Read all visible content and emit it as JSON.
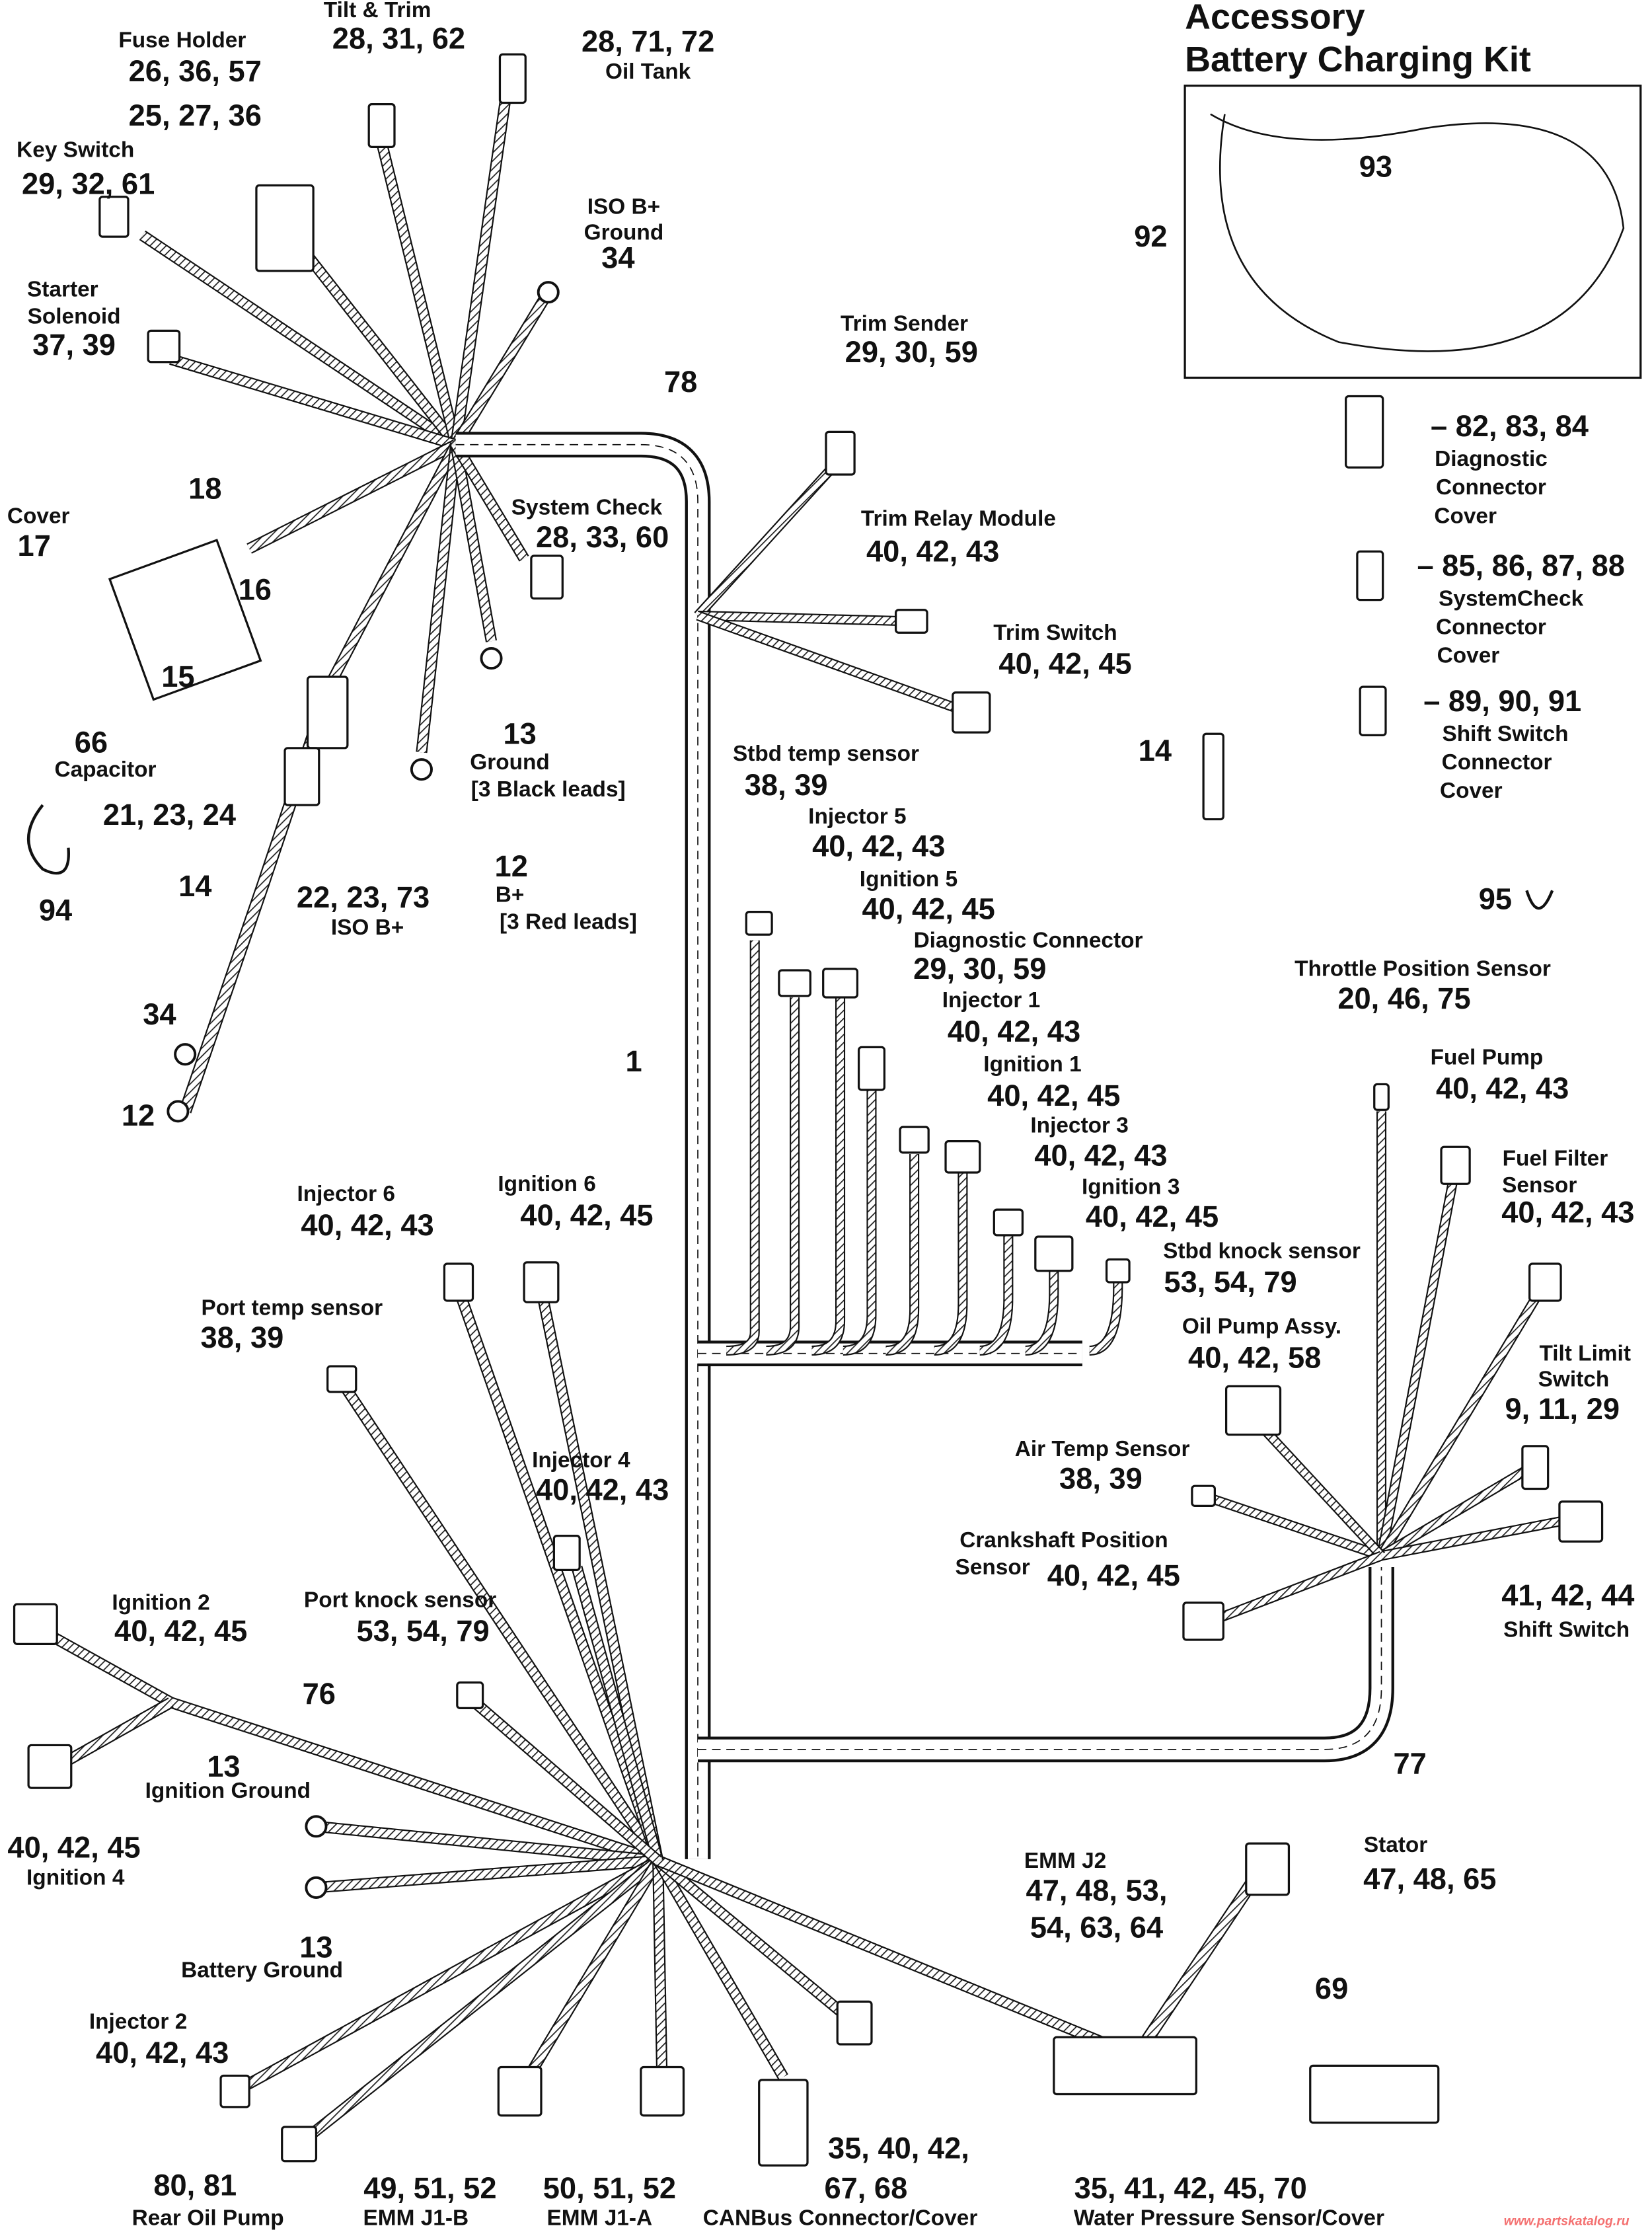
{
  "diagram": {
    "watermark": "www.partskatalog.ru",
    "line_color": "#111111",
    "watermark_color": "#f47070",
    "callouts": [
      {
        "lines": [
          {
            "t": "Tilt & Trim",
            "k": "lbl"
          },
          {
            "t": "28, 31, 62",
            "k": "num"
          }
        ]
      },
      {
        "lines": [
          {
            "t": "28, 71, 72",
            "k": "num"
          },
          {
            "t": "Oil Tank",
            "k": "lbl"
          }
        ]
      },
      {
        "lines": [
          {
            "t": "Fuse Holder",
            "k": "lbl"
          },
          {
            "t": "26, 36, 57",
            "k": "num"
          }
        ]
      },
      {
        "lines": [
          {
            "t": "25, 27, 36",
            "k": "num"
          }
        ]
      },
      {
        "lines": [
          {
            "t": "Key Switch",
            "k": "lbl"
          },
          {
            "t": "29, 32, 61",
            "k": "num"
          }
        ]
      },
      {
        "lines": [
          {
            "t": "ISO B+",
            "k": "lbl"
          },
          {
            "t": "Ground",
            "k": "lbl"
          },
          {
            "t": "34",
            "k": "num"
          }
        ]
      },
      {
        "lines": [
          {
            "t": "Starter",
            "k": "lbl"
          },
          {
            "t": "Solenoid",
            "k": "lbl"
          },
          {
            "t": "37, 39",
            "k": "num"
          }
        ]
      },
      {
        "lines": [
          {
            "t": "78",
            "k": "num"
          }
        ]
      },
      {
        "lines": [
          {
            "t": "Trim Sender",
            "k": "lbl"
          },
          {
            "t": "29, 30, 59",
            "k": "num"
          }
        ]
      },
      {
        "lines": [
          {
            "t": "Cover",
            "k": "lbl"
          },
          {
            "t": "17",
            "k": "num"
          }
        ]
      },
      {
        "lines": [
          {
            "t": "18",
            "k": "num"
          }
        ]
      },
      {
        "lines": [
          {
            "t": "16",
            "k": "num"
          }
        ]
      },
      {
        "lines": [
          {
            "t": "15",
            "k": "num"
          }
        ]
      },
      {
        "lines": [
          {
            "t": "66",
            "k": "num"
          },
          {
            "t": "Capacitor",
            "k": "lbl"
          }
        ]
      },
      {
        "lines": [
          {
            "t": "System Check",
            "k": "lbl"
          },
          {
            "t": "28, 33, 60",
            "k": "num"
          }
        ]
      },
      {
        "lines": [
          {
            "t": "Trim Relay Module",
            "k": "lbl"
          },
          {
            "t": "40, 42, 43",
            "k": "num"
          }
        ]
      },
      {
        "lines": [
          {
            "t": "Trim Switch",
            "k": "lbl"
          },
          {
            "t": "40, 42, 45",
            "k": "num"
          }
        ]
      },
      {
        "lines": [
          {
            "t": "13",
            "k": "num"
          },
          {
            "t": "Ground",
            "k": "lbl"
          },
          {
            "t": "[3 Black leads]",
            "k": "lbl"
          }
        ]
      },
      {
        "lines": [
          {
            "t": "21, 23, 24",
            "k": "num"
          }
        ]
      },
      {
        "lines": [
          {
            "t": "14",
            "k": "num"
          }
        ]
      },
      {
        "lines": [
          {
            "t": "22, 23, 73",
            "k": "num"
          },
          {
            "t": "ISO B+",
            "k": "lbl"
          }
        ]
      },
      {
        "lines": [
          {
            "t": "12",
            "k": "num"
          },
          {
            "t": "B+",
            "k": "lbl"
          },
          {
            "t": "[3 Red leads]",
            "k": "lbl"
          }
        ]
      },
      {
        "lines": [
          {
            "t": "94",
            "k": "num"
          }
        ]
      },
      {
        "lines": [
          {
            "t": "14",
            "k": "num"
          }
        ]
      },
      {
        "lines": [
          {
            "t": "Stbd temp sensor",
            "k": "lbl"
          },
          {
            "t": "38, 39",
            "k": "num"
          }
        ]
      },
      {
        "lines": [
          {
            "t": "Injector 5",
            "k": "lbl"
          },
          {
            "t": "40, 42, 43",
            "k": "num"
          }
        ]
      },
      {
        "lines": [
          {
            "t": "Ignition 5",
            "k": "lbl"
          },
          {
            "t": "40, 42, 45",
            "k": "num"
          }
        ]
      },
      {
        "lines": [
          {
            "t": "Diagnostic Connector",
            "k": "lbl"
          },
          {
            "t": "29, 30, 59",
            "k": "num"
          }
        ]
      },
      {
        "lines": [
          {
            "t": "Injector 1",
            "k": "lbl"
          },
          {
            "t": "40, 42, 43",
            "k": "num"
          }
        ]
      },
      {
        "lines": [
          {
            "t": "Ignition 1",
            "k": "lbl"
          },
          {
            "t": "40, 42, 45",
            "k": "num"
          }
        ]
      },
      {
        "lines": [
          {
            "t": "Injector 3",
            "k": "lbl"
          },
          {
            "t": "40, 42, 43",
            "k": "num"
          }
        ]
      },
      {
        "lines": [
          {
            "t": "Ignition 3",
            "k": "lbl"
          },
          {
            "t": "40, 42, 45",
            "k": "num"
          }
        ]
      },
      {
        "lines": [
          {
            "t": "Stbd knock sensor",
            "k": "lbl"
          },
          {
            "t": "53, 54, 79",
            "k": "num"
          }
        ]
      },
      {
        "lines": [
          {
            "t": "1",
            "k": "num"
          }
        ]
      },
      {
        "lines": [
          {
            "t": "34",
            "k": "num"
          }
        ]
      },
      {
        "lines": [
          {
            "t": "12",
            "k": "num"
          }
        ]
      },
      {
        "lines": [
          {
            "t": "Accessory",
            "k": "ttl"
          },
          {
            "t": "Battery Charging Kit",
            "k": "ttl"
          }
        ]
      },
      {
        "lines": [
          {
            "t": "93",
            "k": "num"
          }
        ]
      },
      {
        "lines": [
          {
            "t": "92",
            "k": "num"
          }
        ]
      },
      {
        "lines": [
          {
            "t": "– 82, 83, 84",
            "k": "num"
          },
          {
            "t": "Diagnostic",
            "k": "lbl"
          },
          {
            "t": "Connector",
            "k": "lbl"
          },
          {
            "t": "Cover",
            "k": "lbl"
          }
        ]
      },
      {
        "lines": [
          {
            "t": "– 85, 86, 87, 88",
            "k": "num"
          },
          {
            "t": "SystemCheck",
            "k": "lbl"
          },
          {
            "t": "Connector",
            "k": "lbl"
          },
          {
            "t": "Cover",
            "k": "lbl"
          }
        ]
      },
      {
        "lines": [
          {
            "t": "– 89, 90, 91",
            "k": "num"
          },
          {
            "t": "Shift Switch",
            "k": "lbl"
          },
          {
            "t": "Connector",
            "k": "lbl"
          },
          {
            "t": "Cover",
            "k": "lbl"
          }
        ]
      },
      {
        "lines": [
          {
            "t": "95",
            "k": "num"
          }
        ]
      },
      {
        "lines": [
          {
            "t": "Throttle Position Sensor",
            "k": "lbl"
          },
          {
            "t": "20, 46, 75",
            "k": "num"
          }
        ]
      },
      {
        "lines": [
          {
            "t": "Fuel Pump",
            "k": "lbl"
          },
          {
            "t": "40, 42, 43",
            "k": "num"
          }
        ]
      },
      {
        "lines": [
          {
            "t": "Fuel Filter",
            "k": "lbl"
          },
          {
            "t": "Sensor",
            "k": "lbl"
          },
          {
            "t": "40, 42, 43",
            "k": "num"
          }
        ]
      },
      {
        "lines": [
          {
            "t": "Tilt Limit",
            "k": "lbl"
          },
          {
            "t": "Switch",
            "k": "lbl"
          },
          {
            "t": "9, 11, 29",
            "k": "num"
          }
        ]
      },
      {
        "lines": [
          {
            "t": "Injector 6",
            "k": "lbl"
          },
          {
            "t": "40, 42, 43",
            "k": "num"
          }
        ]
      },
      {
        "lines": [
          {
            "t": "Ignition 6",
            "k": "lbl"
          },
          {
            "t": "40, 42, 45",
            "k": "num"
          }
        ]
      },
      {
        "lines": [
          {
            "t": "Port temp sensor",
            "k": "lbl"
          },
          {
            "t": "38, 39",
            "k": "num"
          }
        ]
      },
      {
        "lines": [
          {
            "t": "Oil Pump Assy.",
            "k": "lbl"
          },
          {
            "t": "40, 42, 58",
            "k": "num"
          }
        ]
      },
      {
        "lines": [
          {
            "t": "Air Temp Sensor",
            "k": "lbl"
          },
          {
            "t": "38, 39",
            "k": "num"
          }
        ]
      },
      {
        "lines": [
          {
            "t": "Injector 4",
            "k": "lbl"
          },
          {
            "t": "40, 42, 43",
            "k": "num"
          }
        ]
      },
      {
        "lines": [
          {
            "t": "Crankshaft Position",
            "k": "lbl"
          },
          {
            "t": "Sensor",
            "k": "lbl"
          },
          {
            "t": "40, 42, 45",
            "k": "num"
          }
        ]
      },
      {
        "lines": [
          {
            "t": "41, 42, 44",
            "k": "num"
          },
          {
            "t": "Shift Switch",
            "k": "lbl"
          }
        ]
      },
      {
        "lines": [
          {
            "t": "Ignition 2",
            "k": "lbl"
          },
          {
            "t": "40, 42, 45",
            "k": "num"
          }
        ]
      },
      {
        "lines": [
          {
            "t": "Port knock sensor",
            "k": "lbl"
          },
          {
            "t": "53, 54, 79",
            "k": "num"
          }
        ]
      },
      {
        "lines": [
          {
            "t": "76",
            "k": "num"
          }
        ]
      },
      {
        "lines": [
          {
            "t": "77",
            "k": "num"
          }
        ]
      },
      {
        "lines": [
          {
            "t": "13",
            "k": "num"
          },
          {
            "t": "Ignition Ground",
            "k": "lbl"
          }
        ]
      },
      {
        "lines": [
          {
            "t": "40, 42, 45",
            "k": "num"
          },
          {
            "t": "Ignition 4",
            "k": "lbl"
          }
        ]
      },
      {
        "lines": [
          {
            "t": "13",
            "k": "num"
          },
          {
            "t": "Battery Ground",
            "k": "lbl"
          }
        ]
      },
      {
        "lines": [
          {
            "t": "Stator",
            "k": "lbl"
          },
          {
            "t": "47, 48, 65",
            "k": "num"
          }
        ]
      },
      {
        "lines": [
          {
            "t": "EMM J2",
            "k": "lbl"
          },
          {
            "t": "47, 48, 53,",
            "k": "num"
          },
          {
            "t": "54, 63, 64",
            "k": "num"
          }
        ]
      },
      {
        "lines": [
          {
            "t": "69",
            "k": "num"
          }
        ]
      },
      {
        "lines": [
          {
            "t": "Injector 2",
            "k": "lbl"
          },
          {
            "t": "40, 42, 43",
            "k": "num"
          }
        ]
      },
      {
        "lines": [
          {
            "t": "80, 81",
            "k": "num"
          },
          {
            "t": "Rear Oil Pump",
            "k": "lbl"
          }
        ]
      },
      {
        "lines": [
          {
            "t": "49, 51, 52",
            "k": "num"
          },
          {
            "t": "EMM J1-B",
            "k": "lbl"
          }
        ]
      },
      {
        "lines": [
          {
            "t": "50, 51, 52",
            "k": "num"
          },
          {
            "t": "EMM J1-A",
            "k": "lbl"
          }
        ]
      },
      {
        "lines": [
          {
            "t": "35, 40, 42,",
            "k": "num"
          },
          {
            "t": "67, 68",
            "k": "num"
          },
          {
            "t": "CANBus Connector/Cover",
            "k": "lbl"
          }
        ]
      },
      {
        "lines": [
          {
            "t": "35, 41, 42, 45, 70",
            "k": "num"
          },
          {
            "t": "Water Pressure Sensor/Cover",
            "k": "lbl"
          }
        ]
      }
    ]
  }
}
